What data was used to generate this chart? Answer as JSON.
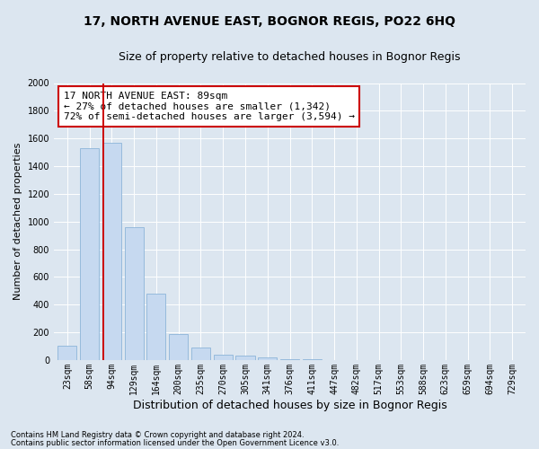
{
  "title": "17, NORTH AVENUE EAST, BOGNOR REGIS, PO22 6HQ",
  "subtitle": "Size of property relative to detached houses in Bognor Regis",
  "xlabel": "Distribution of detached houses by size in Bognor Regis",
  "ylabel": "Number of detached properties",
  "bar_labels": [
    "23sqm",
    "58sqm",
    "94sqm",
    "129sqm",
    "164sqm",
    "200sqm",
    "235sqm",
    "270sqm",
    "305sqm",
    "341sqm",
    "376sqm",
    "411sqm",
    "447sqm",
    "482sqm",
    "517sqm",
    "553sqm",
    "588sqm",
    "623sqm",
    "659sqm",
    "694sqm",
    "729sqm"
  ],
  "bar_values": [
    105,
    1530,
    1570,
    960,
    480,
    190,
    90,
    40,
    30,
    20,
    8,
    8,
    0,
    0,
    0,
    0,
    0,
    0,
    0,
    0,
    0
  ],
  "bar_color": "#c6d9f0",
  "bar_edgecolor": "#8db4d9",
  "marker_bin_index": 2,
  "ylim": [
    0,
    2000
  ],
  "yticks": [
    0,
    200,
    400,
    600,
    800,
    1000,
    1200,
    1400,
    1600,
    1800,
    2000
  ],
  "annotation_title": "17 NORTH AVENUE EAST: 89sqm",
  "annotation_line1": "← 27% of detached houses are smaller (1,342)",
  "annotation_line2": "72% of semi-detached houses are larger (3,594) →",
  "annotation_box_facecolor": "#ffffff",
  "annotation_box_edgecolor": "#cc0000",
  "vline_color": "#cc0000",
  "footer1": "Contains HM Land Registry data © Crown copyright and database right 2024.",
  "footer2": "Contains public sector information licensed under the Open Government Licence v3.0.",
  "bg_color": "#dce6f0",
  "plot_bg_color": "#dce6f0",
  "title_fontsize": 10,
  "subtitle_fontsize": 9,
  "annotation_fontsize": 8,
  "ylabel_fontsize": 8,
  "xlabel_fontsize": 9,
  "tick_fontsize": 7,
  "footer_fontsize": 6
}
